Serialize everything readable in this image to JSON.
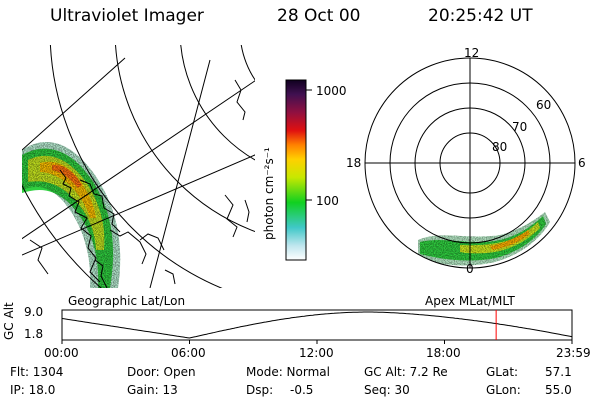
{
  "header": {
    "instrument": "Ultraviolet Imager",
    "date": "28 Oct 00",
    "time": "20:25:42 UT"
  },
  "colorbar": {
    "unit_label": "photon cm⁻²s⁻¹",
    "ticks": [
      "1000",
      "100"
    ]
  },
  "polar_plot": {
    "mlt_labels": [
      "12",
      "18",
      "6",
      "0"
    ],
    "lat_labels": [
      "60",
      "70",
      "80"
    ]
  },
  "panel_labels": {
    "left": "Geographic Lat/Lon",
    "right": "Apex MLat/MLT"
  },
  "altitude_strip": {
    "axis_label": "GC Alt",
    "y_ticks": [
      "9.0",
      "1.8"
    ],
    "x_ticks": [
      "00:00",
      "06:00",
      "12:00",
      "18:00",
      "23:59"
    ],
    "marker_time_hours": 20.43,
    "colors": {
      "curve": "#000000",
      "marker": "#ff0000"
    }
  },
  "info": {
    "flt": "Flt: 1304",
    "ip": "IP: 18.0",
    "door": "Door: Open",
    "gain": "Gain: 13",
    "mode": "Mode: Normal",
    "dsp_label": "Dsp:",
    "dsp_value": "-0.5",
    "gc_alt": "GC Alt: 7.2 Re",
    "seq": "Seq: 30",
    "glat_label": "GLat:",
    "glat_value": "57.1",
    "glon_label": "GLon:",
    "glon_value": "55.0"
  }
}
